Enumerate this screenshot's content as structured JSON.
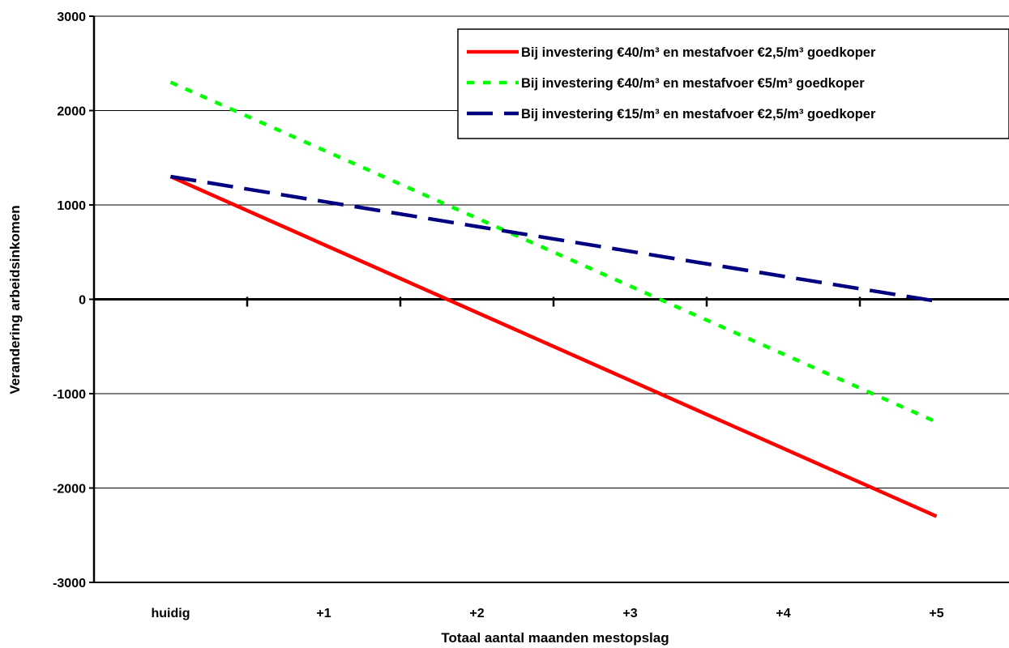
{
  "chart_data": {
    "type": "line",
    "title": "",
    "xlabel": "Totaal aantal maanden mestopslag",
    "ylabel": "Verandering arbeidsinkomen",
    "categories": [
      "huidig",
      "+1",
      "+2",
      "+3",
      "+4",
      "+5"
    ],
    "yticks": [
      "3000",
      "2000",
      "1000",
      "0",
      "-1000",
      "-2000",
      "-3000"
    ],
    "ylim": [
      -3000,
      3000
    ],
    "grid": true,
    "legend_position": "top-right",
    "series": [
      {
        "name": "Bij investering €40/m³ en mestafvoer €2,5/m³ goedkoper",
        "values": [
          1300,
          580,
          -140,
          -860,
          -1580,
          -2300
        ],
        "color": "#ff0000",
        "style": "solid"
      },
      {
        "name": "Bij investering €40/m³ en mestafvoer €5/m³ goedkoper",
        "values": [
          2300,
          1580,
          860,
          140,
          -580,
          -1300
        ],
        "color": "#00ff00",
        "style": "dotted"
      },
      {
        "name": "Bij investering €15/m³ en mestafvoer €2,5/m³ goedkoper",
        "values": [
          1300,
          1036,
          772,
          508,
          244,
          -20
        ],
        "color": "#000080",
        "style": "dashed"
      }
    ]
  }
}
